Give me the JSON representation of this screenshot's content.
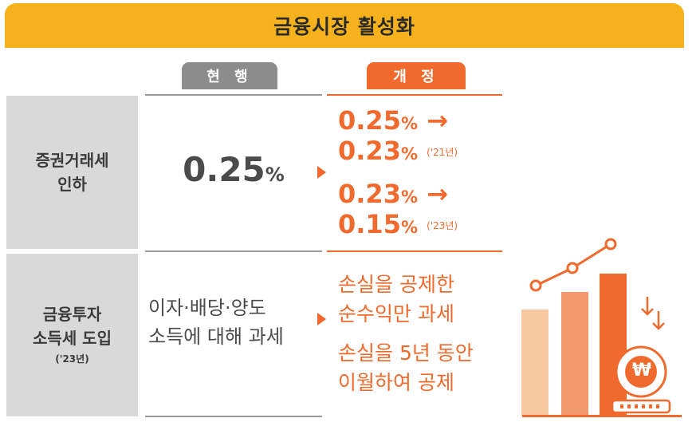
{
  "title": "금융시장 활성화",
  "headers": {
    "current": "현 행",
    "revised": "개 정"
  },
  "rows": [
    {
      "label_lines": [
        "증권거래세",
        "인하"
      ],
      "current": {
        "value": "0.25",
        "unit": "%"
      },
      "revised": [
        {
          "value": "0.25",
          "unit": "%",
          "arrow": "→"
        },
        {
          "value": "0.23",
          "unit": "%",
          "year": "('21년)"
        },
        {
          "value": "0.23",
          "unit": "%",
          "arrow": "→"
        },
        {
          "value": "0.15",
          "unit": "%",
          "year": "('23년)"
        }
      ]
    },
    {
      "label_lines": [
        "금융투자",
        "소득세 도입"
      ],
      "label_note": "('23년)",
      "current_lines": [
        "이자·배당·양도",
        "소득에 대해 과세"
      ],
      "revised_lines": [
        "손실을 공제한",
        "순수익만 과세",
        "손실을 5년 동안",
        "이월하여 공제"
      ]
    }
  ],
  "illustration": {
    "icon": "bar-chart-coin-illustration",
    "coin_symbol": "₩",
    "colors": {
      "bar1": "#f8c9a0",
      "bar2": "#f29a6b",
      "bar3": "#ef6a2c"
    }
  },
  "colors": {
    "banner": "#f6b21c",
    "accent": "#ef6a2c",
    "gray": "#8c8c8c"
  }
}
